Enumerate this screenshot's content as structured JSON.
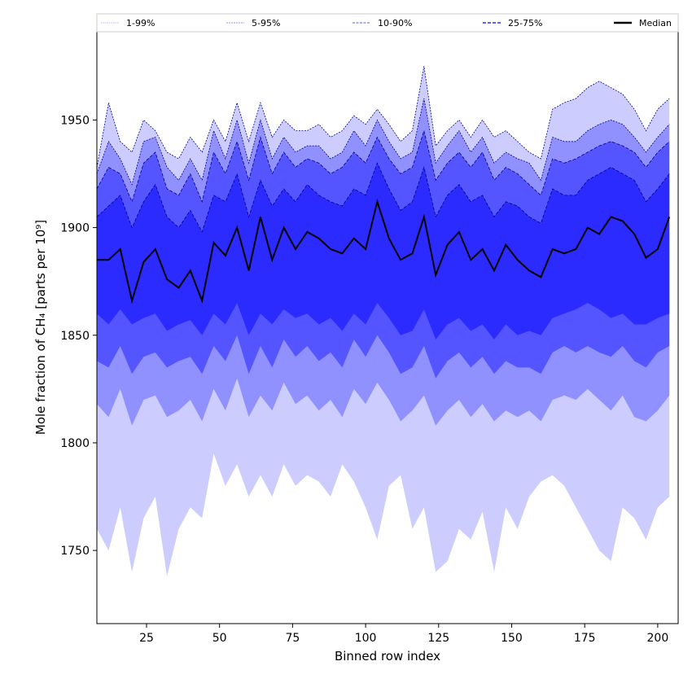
{
  "chart_data": {
    "type": "area",
    "title": "",
    "xlabel": "Binned row index",
    "ylabel": "Mole fraction of CH₄ [parts per 10⁹]",
    "xlim": [
      8,
      207
    ],
    "ylim": [
      1716,
      1991
    ],
    "xticks": [
      25,
      50,
      75,
      100,
      125,
      150,
      175,
      200
    ],
    "yticks": [
      1750,
      1800,
      1850,
      1900,
      1950
    ],
    "grid": false,
    "legend_position": "top, above plot",
    "legend": [
      {
        "label": "1-99%",
        "color": "#ccccff"
      },
      {
        "label": "5-95%",
        "color": "#9090ff"
      },
      {
        "label": "10-90%",
        "color": "#5555ff"
      },
      {
        "label": "25-75%",
        "color": "#2b2bff"
      },
      {
        "label": "Median",
        "color": "#000000"
      }
    ],
    "x": [
      8,
      12,
      16,
      20,
      24,
      28,
      32,
      36,
      40,
      44,
      48,
      52,
      56,
      60,
      64,
      68,
      72,
      76,
      80,
      84,
      88,
      92,
      96,
      100,
      104,
      108,
      112,
      116,
      120,
      124,
      128,
      132,
      136,
      140,
      144,
      148,
      152,
      156,
      160,
      164,
      168,
      172,
      176,
      180,
      184,
      188,
      192,
      196,
      200,
      204
    ],
    "series": [
      {
        "name": "p1",
        "values": [
          1760,
          1750,
          1770,
          1740,
          1765,
          1775,
          1738,
          1760,
          1770,
          1765,
          1795,
          1780,
          1790,
          1775,
          1785,
          1775,
          1790,
          1780,
          1785,
          1782,
          1775,
          1790,
          1782,
          1770,
          1755,
          1780,
          1785,
          1760,
          1770,
          1740,
          1745,
          1760,
          1755,
          1768,
          1740,
          1770,
          1760,
          1775,
          1782,
          1785,
          1780,
          1770,
          1760,
          1750,
          1745,
          1770,
          1765,
          1755,
          1770,
          1775
        ]
      },
      {
        "name": "p5",
        "values": [
          1818,
          1812,
          1825,
          1808,
          1820,
          1822,
          1812,
          1815,
          1820,
          1810,
          1825,
          1815,
          1830,
          1812,
          1822,
          1815,
          1828,
          1818,
          1822,
          1815,
          1820,
          1812,
          1825,
          1818,
          1828,
          1820,
          1810,
          1815,
          1822,
          1808,
          1815,
          1820,
          1812,
          1818,
          1810,
          1815,
          1812,
          1815,
          1810,
          1820,
          1822,
          1820,
          1825,
          1820,
          1815,
          1822,
          1812,
          1810,
          1815,
          1822
        ]
      },
      {
        "name": "p10",
        "values": [
          1838,
          1835,
          1845,
          1832,
          1840,
          1842,
          1835,
          1838,
          1840,
          1832,
          1845,
          1838,
          1850,
          1832,
          1845,
          1835,
          1848,
          1840,
          1845,
          1838,
          1842,
          1835,
          1848,
          1840,
          1850,
          1842,
          1832,
          1835,
          1845,
          1830,
          1838,
          1842,
          1835,
          1840,
          1832,
          1838,
          1835,
          1835,
          1832,
          1842,
          1845,
          1842,
          1845,
          1842,
          1840,
          1845,
          1838,
          1835,
          1842,
          1845
        ]
      },
      {
        "name": "p25",
        "values": [
          1860,
          1855,
          1862,
          1855,
          1858,
          1860,
          1852,
          1855,
          1857,
          1850,
          1860,
          1855,
          1865,
          1850,
          1860,
          1855,
          1862,
          1858,
          1860,
          1855,
          1858,
          1852,
          1860,
          1855,
          1865,
          1858,
          1850,
          1852,
          1862,
          1848,
          1855,
          1858,
          1852,
          1855,
          1848,
          1855,
          1850,
          1852,
          1850,
          1858,
          1860,
          1862,
          1865,
          1862,
          1858,
          1860,
          1855,
          1855,
          1858,
          1860
        ]
      },
      {
        "name": "median",
        "values": [
          1885,
          1885,
          1890,
          1866,
          1884,
          1890,
          1876,
          1872,
          1880,
          1866,
          1893,
          1887,
          1900,
          1880,
          1905,
          1885,
          1900,
          1890,
          1898,
          1895,
          1890,
          1888,
          1895,
          1890,
          1912,
          1895,
          1885,
          1888,
          1905,
          1878,
          1892,
          1898,
          1885,
          1890,
          1880,
          1892,
          1885,
          1880,
          1877,
          1890,
          1888,
          1890,
          1900,
          1897,
          1905,
          1903,
          1897,
          1886,
          1890,
          1905
        ]
      },
      {
        "name": "p75",
        "values": [
          1905,
          1910,
          1915,
          1900,
          1912,
          1920,
          1905,
          1900,
          1908,
          1898,
          1915,
          1912,
          1925,
          1905,
          1922,
          1910,
          1918,
          1912,
          1920,
          1915,
          1912,
          1910,
          1918,
          1915,
          1930,
          1918,
          1908,
          1912,
          1928,
          1905,
          1915,
          1920,
          1912,
          1915,
          1905,
          1912,
          1910,
          1905,
          1902,
          1918,
          1915,
          1915,
          1922,
          1925,
          1928,
          1925,
          1922,
          1912,
          1918,
          1925
        ]
      },
      {
        "name": "p90",
        "values": [
          1918,
          1928,
          1925,
          1912,
          1930,
          1935,
          1918,
          1915,
          1925,
          1912,
          1935,
          1925,
          1940,
          1922,
          1942,
          1925,
          1935,
          1928,
          1932,
          1930,
          1925,
          1928,
          1935,
          1930,
          1942,
          1932,
          1925,
          1928,
          1945,
          1922,
          1930,
          1935,
          1928,
          1935,
          1922,
          1928,
          1925,
          1920,
          1915,
          1932,
          1930,
          1932,
          1935,
          1938,
          1940,
          1938,
          1935,
          1928,
          1935,
          1940
        ]
      },
      {
        "name": "p95",
        "values": [
          1925,
          1940,
          1932,
          1920,
          1940,
          1942,
          1928,
          1922,
          1932,
          1922,
          1945,
          1932,
          1950,
          1930,
          1950,
          1932,
          1942,
          1935,
          1938,
          1938,
          1932,
          1935,
          1945,
          1938,
          1950,
          1940,
          1932,
          1935,
          1960,
          1930,
          1938,
          1945,
          1935,
          1942,
          1930,
          1935,
          1932,
          1930,
          1922,
          1942,
          1940,
          1940,
          1945,
          1948,
          1950,
          1948,
          1942,
          1935,
          1942,
          1948
        ]
      },
      {
        "name": "p99",
        "values": [
          1928,
          1958,
          1940,
          1935,
          1950,
          1945,
          1935,
          1932,
          1942,
          1935,
          1950,
          1940,
          1958,
          1940,
          1958,
          1942,
          1950,
          1945,
          1945,
          1948,
          1942,
          1945,
          1952,
          1948,
          1955,
          1948,
          1940,
          1945,
          1975,
          1938,
          1945,
          1950,
          1942,
          1950,
          1942,
          1945,
          1940,
          1935,
          1932,
          1955,
          1958,
          1960,
          1965,
          1968,
          1965,
          1962,
          1955,
          1945,
          1955,
          1960
        ]
      }
    ]
  }
}
